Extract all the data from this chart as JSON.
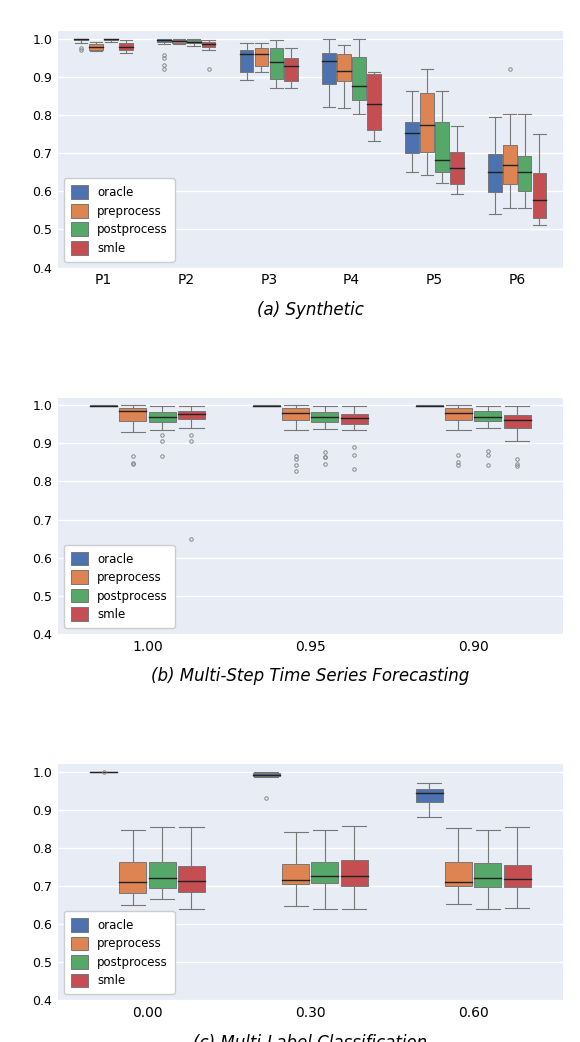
{
  "colors": {
    "oracle": "#4C72B0",
    "preprocess": "#DD8452",
    "postprocess": "#55A868",
    "smle": "#C44E52"
  },
  "background_color": "#E8ECF5",
  "legend_labels": [
    "oracle",
    "preprocess",
    "postprocess",
    "smle"
  ],
  "subplot_a": {
    "title": "(a) Synthetic",
    "ylim": [
      0.4,
      1.02
    ],
    "yticks": [
      0.4,
      0.5,
      0.6,
      0.7,
      0.8,
      0.9,
      1.0
    ],
    "xtick_labels": [
      "P1",
      "P2",
      "P3",
      "P4",
      "P5",
      "P6"
    ],
    "groups": [
      "P1",
      "P2",
      "P3",
      "P4",
      "P5",
      "P6"
    ],
    "data": {
      "oracle": [
        {
          "q1": 0.9965,
          "med": 0.999,
          "q3": 1.0,
          "whislo": 0.99,
          "whishi": 1.0,
          "fliers": [
            0.975,
            0.972
          ]
        },
        {
          "q1": 0.993,
          "med": 0.997,
          "q3": 0.999,
          "whislo": 0.987,
          "whishi": 1.0,
          "fliers": [
            0.957,
            0.95,
            0.932,
            0.921
          ]
        },
        {
          "q1": 0.912,
          "med": 0.96,
          "q3": 0.972,
          "whislo": 0.892,
          "whishi": 0.99,
          "fliers": []
        },
        {
          "q1": 0.882,
          "med": 0.942,
          "q3": 0.962,
          "whislo": 0.822,
          "whishi": 1.0,
          "fliers": []
        },
        {
          "q1": 0.7,
          "med": 0.752,
          "q3": 0.782,
          "whislo": 0.652,
          "whishi": 0.862,
          "fliers": []
        },
        {
          "q1": 0.598,
          "med": 0.65,
          "q3": 0.697,
          "whislo": 0.541,
          "whishi": 0.795,
          "fliers": []
        }
      ],
      "preprocess": [
        {
          "q1": 0.972,
          "med": 0.98,
          "q3": 0.986,
          "whislo": 0.968,
          "whishi": 0.991,
          "fliers": []
        },
        {
          "q1": 0.99,
          "med": 0.995,
          "q3": 0.998,
          "whislo": 0.987,
          "whishi": 1.0,
          "fliers": []
        },
        {
          "q1": 0.93,
          "med": 0.96,
          "q3": 0.975,
          "whislo": 0.912,
          "whishi": 0.99,
          "fliers": []
        },
        {
          "q1": 0.89,
          "med": 0.915,
          "q3": 0.96,
          "whislo": 0.82,
          "whishi": 0.985,
          "fliers": []
        },
        {
          "q1": 0.702,
          "med": 0.775,
          "q3": 0.857,
          "whislo": 0.642,
          "whishi": 0.922,
          "fliers": []
        },
        {
          "q1": 0.62,
          "med": 0.67,
          "q3": 0.722,
          "whislo": 0.557,
          "whishi": 0.802,
          "fliers": [
            0.92
          ]
        }
      ],
      "postprocess": [
        {
          "q1": 0.9965,
          "med": 0.999,
          "q3": 1.0,
          "whislo": 0.991,
          "whishi": 1.0,
          "fliers": []
        },
        {
          "q1": 0.988,
          "med": 0.993,
          "q3": 0.997,
          "whislo": 0.982,
          "whishi": 1.0,
          "fliers": []
        },
        {
          "q1": 0.895,
          "med": 0.94,
          "q3": 0.975,
          "whislo": 0.872,
          "whishi": 0.997,
          "fliers": []
        },
        {
          "q1": 0.84,
          "med": 0.877,
          "q3": 0.952,
          "whislo": 0.802,
          "whishi": 1.0,
          "fliers": []
        },
        {
          "q1": 0.652,
          "med": 0.682,
          "q3": 0.782,
          "whislo": 0.622,
          "whishi": 0.862,
          "fliers": []
        },
        {
          "q1": 0.6,
          "med": 0.65,
          "q3": 0.692,
          "whislo": 0.557,
          "whishi": 0.802,
          "fliers": []
        }
      ],
      "smle": [
        {
          "q1": 0.97,
          "med": 0.98,
          "q3": 0.988,
          "whislo": 0.963,
          "whishi": 0.997,
          "fliers": []
        },
        {
          "q1": 0.978,
          "med": 0.987,
          "q3": 0.993,
          "whislo": 0.97,
          "whishi": 0.998,
          "fliers": [
            0.921
          ]
        },
        {
          "q1": 0.89,
          "med": 0.93,
          "q3": 0.95,
          "whislo": 0.872,
          "whishi": 0.975,
          "fliers": []
        },
        {
          "q1": 0.76,
          "med": 0.83,
          "q3": 0.907,
          "whislo": 0.732,
          "whishi": 0.912,
          "fliers": []
        },
        {
          "q1": 0.62,
          "med": 0.662,
          "q3": 0.702,
          "whislo": 0.592,
          "whishi": 0.772,
          "fliers": []
        },
        {
          "q1": 0.53,
          "med": 0.578,
          "q3": 0.647,
          "whislo": 0.511,
          "whishi": 0.75,
          "fliers": []
        }
      ]
    }
  },
  "subplot_b": {
    "title": "(b) Multi-Step Time Series Forecasting",
    "ylim": [
      0.4,
      1.02
    ],
    "yticks": [
      0.4,
      0.5,
      0.6,
      0.7,
      0.8,
      0.9,
      1.0
    ],
    "xtick_labels": [
      "1.00",
      "0.95",
      "0.90"
    ],
    "groups": [
      "1.00",
      "0.95",
      "0.90"
    ],
    "data": {
      "oracle": [
        {
          "q1": 0.9985,
          "med": 0.9993,
          "q3": 1.0,
          "whislo": 0.9975,
          "whishi": 1.0,
          "fliers": []
        },
        {
          "q1": 0.9985,
          "med": 0.9993,
          "q3": 1.0,
          "whislo": 0.9975,
          "whishi": 1.0,
          "fliers": []
        },
        {
          "q1": 0.9983,
          "med": 0.9991,
          "q3": 1.0,
          "whislo": 0.9972,
          "whishi": 1.0,
          "fliers": []
        }
      ],
      "preprocess": [
        {
          "q1": 0.958,
          "med": 0.985,
          "q3": 0.993,
          "whislo": 0.93,
          "whishi": 1.0,
          "fliers": [
            0.847,
            0.848,
            0.867
          ]
        },
        {
          "q1": 0.96,
          "med": 0.98,
          "q3": 0.992,
          "whislo": 0.934,
          "whishi": 1.0,
          "fliers": [
            0.858,
            0.868,
            0.844,
            0.828
          ]
        },
        {
          "q1": 0.962,
          "med": 0.98,
          "q3": 0.992,
          "whislo": 0.935,
          "whishi": 1.0,
          "fliers": [
            0.85,
            0.87,
            0.843
          ]
        }
      ],
      "postprocess": [
        {
          "q1": 0.955,
          "med": 0.97,
          "q3": 0.983,
          "whislo": 0.936,
          "whishi": 0.997,
          "fliers": [
            0.921,
            0.907,
            0.867
          ]
        },
        {
          "q1": 0.955,
          "med": 0.968,
          "q3": 0.982,
          "whislo": 0.937,
          "whishi": 0.997,
          "fliers": [
            0.877,
            0.863,
            0.846,
            0.865
          ]
        },
        {
          "q1": 0.958,
          "med": 0.97,
          "q3": 0.984,
          "whislo": 0.941,
          "whishi": 0.997,
          "fliers": [
            0.88,
            0.87,
            0.844
          ]
        }
      ],
      "smle": [
        {
          "q1": 0.965,
          "med": 0.978,
          "q3": 0.985,
          "whislo": 0.941,
          "whishi": 0.998,
          "fliers": [
            0.921,
            0.907,
            0.648
          ]
        },
        {
          "q1": 0.95,
          "med": 0.967,
          "q3": 0.978,
          "whislo": 0.935,
          "whishi": 0.997,
          "fliers": [
            0.89,
            0.87,
            0.832
          ]
        },
        {
          "q1": 0.94,
          "med": 0.96,
          "q3": 0.975,
          "whislo": 0.906,
          "whishi": 0.997,
          "fliers": [
            0.86,
            0.845,
            0.841
          ]
        }
      ]
    }
  },
  "subplot_c": {
    "title": "(c) Multi-Label Classification",
    "ylim": [
      0.4,
      1.02
    ],
    "yticks": [
      0.4,
      0.5,
      0.6,
      0.7,
      0.8,
      0.9,
      1.0
    ],
    "xtick_labels": [
      "0.00",
      "0.30",
      "0.60"
    ],
    "groups": [
      "0.00",
      "0.30",
      "0.60"
    ],
    "data": {
      "oracle": [
        {
          "q1": 1.0,
          "med": 1.0,
          "q3": 1.0,
          "whislo": 1.0,
          "whishi": 1.0,
          "fliers": [
            1.0
          ]
        },
        {
          "q1": 0.988,
          "med": 0.992,
          "q3": 0.996,
          "whislo": 0.986,
          "whishi": 0.998,
          "fliers": [
            0.932
          ]
        },
        {
          "q1": 0.92,
          "med": 0.945,
          "q3": 0.955,
          "whislo": 0.882,
          "whishi": 0.97,
          "fliers": []
        }
      ],
      "preprocess": [
        {
          "q1": 0.682,
          "med": 0.71,
          "q3": 0.762,
          "whislo": 0.651,
          "whishi": 0.848,
          "fliers": []
        },
        {
          "q1": 0.705,
          "med": 0.715,
          "q3": 0.757,
          "whislo": 0.647,
          "whishi": 0.842,
          "fliers": []
        },
        {
          "q1": 0.7,
          "med": 0.71,
          "q3": 0.762,
          "whislo": 0.652,
          "whishi": 0.852,
          "fliers": []
        }
      ],
      "postprocess": [
        {
          "q1": 0.695,
          "med": 0.72,
          "q3": 0.762,
          "whislo": 0.667,
          "whishi": 0.855,
          "fliers": []
        },
        {
          "q1": 0.708,
          "med": 0.727,
          "q3": 0.762,
          "whislo": 0.64,
          "whishi": 0.847,
          "fliers": []
        },
        {
          "q1": 0.698,
          "med": 0.72,
          "q3": 0.759,
          "whislo": 0.64,
          "whishi": 0.847,
          "fliers": []
        }
      ],
      "smle": [
        {
          "q1": 0.685,
          "med": 0.712,
          "q3": 0.752,
          "whislo": 0.64,
          "whishi": 0.855,
          "fliers": []
        },
        {
          "q1": 0.7,
          "med": 0.727,
          "q3": 0.767,
          "whislo": 0.64,
          "whishi": 0.857,
          "fliers": []
        },
        {
          "q1": 0.697,
          "med": 0.717,
          "q3": 0.755,
          "whislo": 0.642,
          "whishi": 0.855,
          "fliers": []
        }
      ]
    }
  }
}
